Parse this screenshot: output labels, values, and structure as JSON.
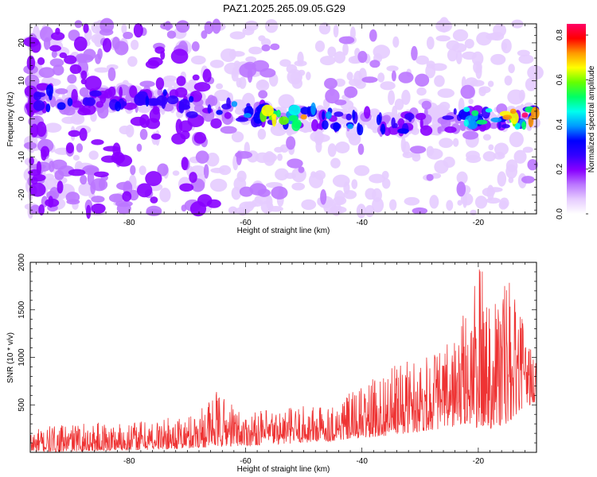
{
  "figure": {
    "title": "PAZ1.2025.265.09.05.G29"
  },
  "chart_data": [
    {
      "type": "heatmap",
      "title": "PAZ1.2025.265.09.05.G29",
      "xlabel": "Height of straight line (km)",
      "ylabel": "Frequency (Hz)",
      "xlim": [
        -97,
        -10
      ],
      "ylim": [
        -25,
        25
      ],
      "xticks": [
        -80,
        -60,
        -40,
        -20
      ],
      "yticks": [
        -20,
        -10,
        0,
        10,
        20
      ],
      "colorbar": {
        "label": "Normalized spectral amplitude",
        "range": [
          0,
          0.85
        ],
        "ticks": [
          0.0,
          0.2,
          0.4,
          0.6,
          0.8
        ],
        "tick_labels": [
          "0.0",
          "0.2",
          "0.4",
          "0.6",
          "0.8"
        ],
        "colors": [
          "#ffffff",
          "#e6ccff",
          "#bb77ff",
          "#8800ff",
          "#3300ff",
          "#0000ff",
          "#0099ff",
          "#00ffee",
          "#00ff66",
          "#66ff00",
          "#ffff00",
          "#ff9900",
          "#ff0000",
          "#ff0066"
        ]
      },
      "ridge": {
        "description": "main spectral signal band",
        "x": [
          -95,
          -85,
          -75,
          -65,
          -55,
          -45,
          -35,
          -25,
          -15,
          -10
        ],
        "frequency_hz": [
          5,
          5,
          5,
          2.5,
          1,
          0,
          -1,
          -0.5,
          0.5,
          0.5
        ],
        "peak_amplitude": [
          0.3,
          0.3,
          0.3,
          0.3,
          0.75,
          0.35,
          0.3,
          0.3,
          0.8,
          0.8
        ]
      }
    },
    {
      "type": "line",
      "xlabel": "Height of straight line (km)",
      "ylabel": "SNR (10 * v/v)",
      "xlim": [
        -97,
        -10
      ],
      "ylim": [
        0,
        2000
      ],
      "xticks": [
        -80,
        -60,
        -40,
        -20
      ],
      "yticks": [
        500,
        1000,
        1500,
        2000
      ],
      "series": [
        {
          "name": "SNR",
          "color": "#ee3333",
          "envelope": {
            "x": [
              -97,
              -90,
              -80,
              -70,
              -65,
              -60,
              -50,
              -45,
              -40,
              -35,
              -30,
              -25,
              -22,
              -20,
              -18,
              -15,
              -12,
              -10
            ],
            "y": [
              250,
              300,
              330,
              380,
              650,
              420,
              500,
              520,
              700,
              900,
              1050,
              1150,
              1550,
              2000,
              1880,
              1880,
              1320,
              1000
            ],
            "base": [
              0,
              10,
              20,
              40,
              60,
              70,
              100,
              120,
              150,
              180,
              220,
              260,
              300,
              250,
              250,
              280,
              500,
              500
            ]
          }
        }
      ]
    }
  ]
}
